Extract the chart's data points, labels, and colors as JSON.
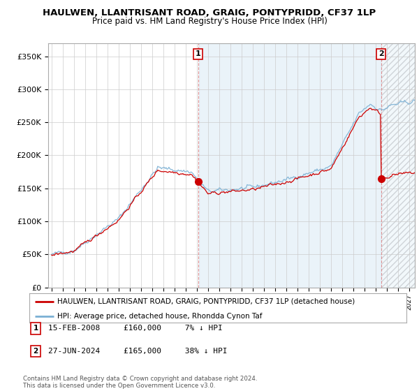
{
  "title": "HAULWEN, LLANTRISANT ROAD, GRAIG, PONTYPRIDD, CF37 1LP",
  "subtitle": "Price paid vs. HM Land Registry's House Price Index (HPI)",
  "ylabel_ticks": [
    "£0",
    "£50K",
    "£100K",
    "£150K",
    "£200K",
    "£250K",
    "£300K",
    "£350K"
  ],
  "ytick_values": [
    0,
    50000,
    100000,
    150000,
    200000,
    250000,
    300000,
    350000
  ],
  "ylim": [
    0,
    370000
  ],
  "xlim_start": 1994.7,
  "xlim_end": 2027.5,
  "legend_line1": "HAULWEN, LLANTRISANT ROAD, GRAIG, PONTYPRIDD, CF37 1LP (detached house)",
  "legend_line2": "HPI: Average price, detached house, Rhondda Cynon Taf",
  "annotation1_text": "15-FEB-2008     £160,000     7% ↓ HPI",
  "annotation2_text": "27-JUN-2024     £165,000     38% ↓ HPI",
  "footer": "Contains HM Land Registry data © Crown copyright and database right 2024.\nThis data is licensed under the Open Government Licence v3.0.",
  "sale_color": "#cc0000",
  "hpi_color": "#7ab0d4",
  "hpi_fill_color": "#d6e8f5",
  "annotation_color": "#cc0000",
  "background_color": "#ffffff",
  "grid_color": "#cccccc",
  "sale1_x": 2008.12,
  "sale1_y": 160000,
  "sale2_x": 2024.49,
  "sale2_y": 165000
}
